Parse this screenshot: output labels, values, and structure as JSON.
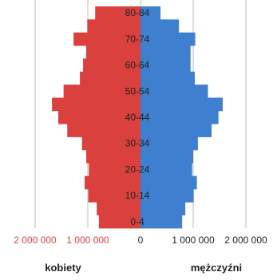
{
  "chart_data": {
    "type": "bar",
    "orientation": "horizontal",
    "style": "population-pyramid",
    "categories": [
      "0-4",
      "5-9",
      "10-14",
      "15-19",
      "20-24",
      "25-29",
      "30-34",
      "35-39",
      "40-44",
      "45-49",
      "50-54",
      "55-59",
      "60-64",
      "65-69",
      "70-74",
      "75-79",
      "80-84"
    ],
    "category_labels": [
      "0-4",
      "",
      "10-14",
      "",
      "20-24",
      "",
      "30-34",
      "",
      "40-44",
      "",
      "50-54",
      "",
      "60-64",
      "",
      "70-74",
      "",
      "80-84"
    ],
    "series": [
      {
        "name": "kobiety",
        "color": "#d9403e",
        "values": [
          790000,
          830000,
          990000,
          1060000,
          980000,
          1030000,
          1110000,
          1390000,
          1560000,
          1680000,
          1460000,
          1150000,
          1090000,
          1030000,
          1270000,
          1010000,
          860000
        ]
      },
      {
        "name": "mężczyźni",
        "color": "#3f7fcf",
        "values": [
          790000,
          850000,
          1010000,
          1070000,
          980000,
          1000000,
          1090000,
          1350000,
          1480000,
          1560000,
          1280000,
          1030000,
          950000,
          950000,
          1040000,
          730000,
          380000
        ]
      }
    ],
    "xlim": [
      -2000000,
      2000000
    ],
    "xticks": [
      {
        "value": -2000000,
        "label": "2 000 000"
      },
      {
        "value": -1000000,
        "label": "1 000 000"
      },
      {
        "value": 0,
        "label": "0"
      },
      {
        "value": 1000000,
        "label": "1 000 000"
      },
      {
        "value": 2000000,
        "label": "2 000 000"
      }
    ],
    "tick_label_colors": {
      "negative": "#d9403e",
      "positive": "#222222"
    },
    "grid": "vertical",
    "legend": "below axis"
  }
}
